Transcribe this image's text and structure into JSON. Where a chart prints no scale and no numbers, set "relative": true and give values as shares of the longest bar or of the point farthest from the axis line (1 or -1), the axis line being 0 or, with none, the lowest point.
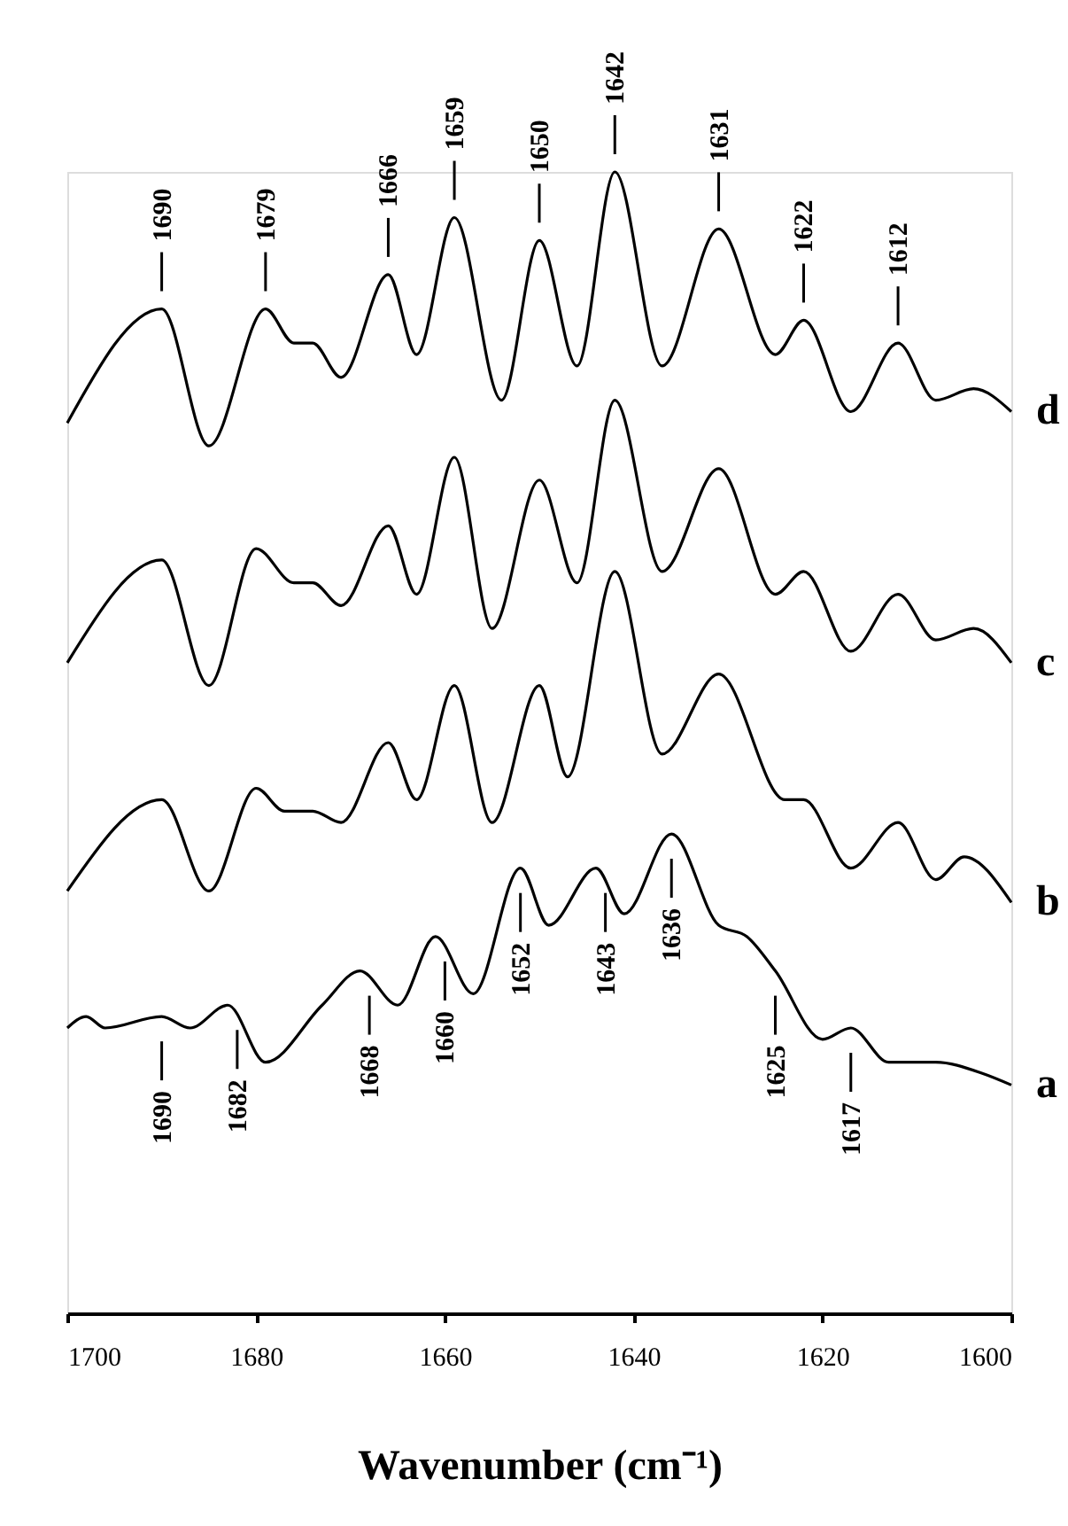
{
  "chart_data": {
    "type": "line",
    "relative": true,
    "xlabel": "Wavenumber (cm⁻¹)",
    "xlim": [
      1700,
      1600
    ],
    "xticks": [
      1700,
      1680,
      1660,
      1640,
      1620,
      1600
    ],
    "grid": false,
    "marker": "none",
    "line_style": "solid",
    "series": [
      {
        "name": "a",
        "color": "#000000",
        "x": [
          1700,
          1698,
          1696,
          1690,
          1687,
          1683,
          1679,
          1673,
          1669,
          1665,
          1661,
          1657,
          1652,
          1649,
          1644,
          1641,
          1636,
          1631,
          1628,
          1625,
          1620,
          1617,
          1613,
          1608,
          1603,
          1600
        ],
        "values": [
          0.25,
          0.26,
          0.25,
          0.26,
          0.25,
          0.27,
          0.22,
          0.27,
          0.3,
          0.27,
          0.33,
          0.28,
          0.39,
          0.34,
          0.39,
          0.35,
          0.42,
          0.34,
          0.33,
          0.3,
          0.24,
          0.25,
          0.22,
          0.22,
          0.21,
          0.2
        ]
      },
      {
        "name": "b",
        "color": "#000000",
        "x": [
          1700,
          1690,
          1685,
          1680,
          1677,
          1674,
          1671,
          1666,
          1663,
          1659,
          1655,
          1650,
          1647,
          1642,
          1637,
          1631,
          1624,
          1622,
          1617,
          1612,
          1608,
          1605,
          1600
        ],
        "values": [
          0.37,
          0.45,
          0.37,
          0.46,
          0.44,
          0.44,
          0.43,
          0.5,
          0.45,
          0.55,
          0.43,
          0.55,
          0.47,
          0.65,
          0.49,
          0.56,
          0.45,
          0.45,
          0.39,
          0.43,
          0.38,
          0.4,
          0.36
        ]
      },
      {
        "name": "c",
        "color": "#000000",
        "x": [
          1700,
          1690,
          1685,
          1680,
          1676,
          1674,
          1671,
          1666,
          1663,
          1659,
          1655,
          1650,
          1646,
          1642,
          1637,
          1631,
          1625,
          1622,
          1617,
          1612,
          1608,
          1604,
          1600
        ],
        "values": [
          0.57,
          0.66,
          0.55,
          0.67,
          0.64,
          0.64,
          0.62,
          0.69,
          0.63,
          0.75,
          0.6,
          0.73,
          0.64,
          0.8,
          0.65,
          0.74,
          0.63,
          0.65,
          0.58,
          0.63,
          0.59,
          0.6,
          0.57
        ]
      },
      {
        "name": "d",
        "color": "#000000",
        "x": [
          1700,
          1690,
          1685,
          1679,
          1676,
          1674,
          1671,
          1666,
          1663,
          1659,
          1654,
          1650,
          1646,
          1642,
          1637,
          1631,
          1625,
          1622,
          1617,
          1612,
          1608,
          1604,
          1600
        ],
        "values": [
          0.78,
          0.88,
          0.76,
          0.88,
          0.85,
          0.85,
          0.82,
          0.91,
          0.84,
          0.96,
          0.8,
          0.94,
          0.83,
          1.0,
          0.83,
          0.95,
          0.84,
          0.87,
          0.79,
          0.85,
          0.8,
          0.81,
          0.79
        ]
      }
    ],
    "annotations": [
      {
        "text": "1690",
        "x": 1690,
        "y": 0.88
      },
      {
        "text": "1679",
        "x": 1679,
        "y": 0.88
      },
      {
        "text": "1666",
        "x": 1666,
        "y": 0.91
      },
      {
        "text": "1659",
        "x": 1659,
        "y": 0.96
      },
      {
        "text": "1650",
        "x": 1650,
        "y": 0.94
      },
      {
        "text": "1642",
        "x": 1642,
        "y": 1.0
      },
      {
        "text": "1631",
        "x": 1631,
        "y": 0.95
      },
      {
        "text": "1622",
        "x": 1622,
        "y": 0.87
      },
      {
        "text": "1612",
        "x": 1612,
        "y": 0.85
      },
      {
        "text": "1690",
        "x": 1690,
        "y": 0.26
      },
      {
        "text": "1682",
        "x": 1682,
        "y": 0.27
      },
      {
        "text": "1668",
        "x": 1668,
        "y": 0.3
      },
      {
        "text": "1660",
        "x": 1660,
        "y": 0.33
      },
      {
        "text": "1652",
        "x": 1652,
        "y": 0.39
      },
      {
        "text": "1643",
        "x": 1643,
        "y": 0.39
      },
      {
        "text": "1636",
        "x": 1636,
        "y": 0.42
      },
      {
        "text": "1625",
        "x": 1625,
        "y": 0.3
      },
      {
        "text": "1617",
        "x": 1617,
        "y": 0.25
      }
    ]
  }
}
